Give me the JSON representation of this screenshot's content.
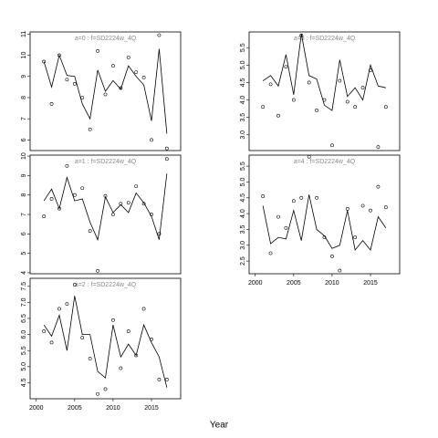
{
  "chart_data": [
    {
      "type": "line",
      "title": "a=0  :  f=SD2224w_4Q",
      "x": [
        2001,
        2002,
        2003,
        2004,
        2005,
        2006,
        2007,
        2008,
        2009,
        2010,
        2011,
        2012,
        2013,
        2014,
        2015,
        2016,
        2017
      ],
      "series": [
        {
          "marker": "line",
          "color": "#000000",
          "values": [
            9.7,
            8.5,
            10.0,
            9.05,
            9.0,
            7.7,
            7.0,
            9.3,
            8.3,
            8.8,
            8.4,
            9.5,
            9.0,
            8.6,
            6.9,
            10.3,
            6.3
          ]
        },
        {
          "marker": "circle",
          "color": "#000000",
          "values": [
            9.7,
            7.7,
            10.0,
            8.85,
            8.65,
            8.0,
            6.5,
            10.2,
            8.15,
            9.5,
            8.45,
            9.9,
            9.2,
            8.95,
            6.0,
            10.95,
            5.6
          ]
        }
      ],
      "xlim": [
        1999.2,
        2018.8
      ],
      "ylim": [
        5.5,
        11.1
      ],
      "yticks": [
        6,
        7,
        8,
        9,
        10,
        11
      ]
    },
    {
      "type": "line",
      "title": "a=1  :  f=SD2224w_4Q",
      "x": [
        2001,
        2002,
        2003,
        2004,
        2005,
        2006,
        2007,
        2008,
        2009,
        2010,
        2011,
        2012,
        2013,
        2014,
        2015,
        2016,
        2017
      ],
      "series": [
        {
          "marker": "line",
          "color": "#000000",
          "values": [
            7.7,
            8.3,
            7.3,
            8.9,
            7.7,
            7.8,
            6.6,
            5.7,
            7.9,
            7.1,
            7.5,
            7.1,
            8.1,
            7.6,
            6.9,
            5.7,
            9.1
          ]
        },
        {
          "marker": "circle",
          "color": "#000000",
          "values": [
            6.9,
            7.8,
            7.3,
            9.5,
            8.0,
            8.35,
            6.15,
            4.1,
            7.95,
            7.0,
            7.55,
            7.6,
            8.45,
            7.55,
            7.0,
            6.0,
            9.85
          ]
        }
      ],
      "xlim": [
        1999.2,
        2018.8
      ],
      "ylim": [
        3.95,
        10.05
      ],
      "yticks": [
        4,
        5,
        6,
        7,
        8,
        9,
        10
      ]
    },
    {
      "type": "line",
      "title": "a=2  :  f=SD2224w_4Q",
      "xlabel": "Year",
      "x": [
        2001,
        2002,
        2003,
        2004,
        2005,
        2006,
        2007,
        2008,
        2009,
        2010,
        2011,
        2012,
        2013,
        2014,
        2015,
        2016,
        2017
      ],
      "series": [
        {
          "marker": "line",
          "color": "#000000",
          "values": [
            6.3,
            5.95,
            6.6,
            5.5,
            7.2,
            6.0,
            6.0,
            4.85,
            4.65,
            6.3,
            5.3,
            5.7,
            5.35,
            6.3,
            5.75,
            5.3,
            4.35
          ]
        },
        {
          "marker": "circle",
          "color": "#000000",
          "values": [
            6.1,
            5.75,
            6.8,
            6.95,
            7.55,
            5.9,
            5.25,
            4.15,
            4.3,
            6.45,
            4.95,
            6.1,
            5.35,
            6.8,
            5.85,
            4.6,
            4.6
          ]
        }
      ],
      "xlim": [
        1999.2,
        2018.8
      ],
      "ylim": [
        4.0,
        7.75
      ],
      "yticks": [
        4.5,
        {
          "value": 5,
          "label": "5.0"
        },
        5.5,
        {
          "value": 6,
          "label": "6.0"
        },
        6.5,
        {
          "value": 7,
          "label": "7.0"
        },
        7.5
      ],
      "xticks": [
        2000,
        2005,
        2010,
        2015
      ]
    },
    {
      "type": "line",
      "title": "a=3  :  f=SD2224w_4Q",
      "x": [
        2001,
        2002,
        2003,
        2004,
        2005,
        2006,
        2007,
        2008,
        2009,
        2010,
        2011,
        2012,
        2013,
        2014,
        2015,
        2016,
        2017
      ],
      "series": [
        {
          "marker": "line",
          "color": "#000000",
          "values": [
            4.55,
            4.7,
            4.4,
            5.3,
            4.15,
            5.9,
            4.7,
            4.6,
            3.85,
            3.7,
            5.15,
            4.1,
            4.35,
            4.0,
            5.0,
            4.4,
            4.35
          ]
        },
        {
          "marker": "circle",
          "color": "#000000",
          "values": [
            3.8,
            4.45,
            3.55,
            4.95,
            4.0,
            5.85,
            4.5,
            3.7,
            4.0,
            2.7,
            4.55,
            3.95,
            3.8,
            4.35,
            4.85,
            2.65,
            3.8
          ]
        }
      ],
      "xlim": [
        1999.2,
        2018.8
      ],
      "ylim": [
        2.55,
        5.95
      ],
      "yticks": [
        {
          "value": 3,
          "label": "3.0"
        },
        3.5,
        {
          "value": 4,
          "label": "4.0"
        },
        4.5,
        {
          "value": 5,
          "label": "5.0"
        },
        5.5
      ]
    },
    {
      "type": "line",
      "title": "a=4  :  f=SD2224w_4Q",
      "x": [
        2001,
        2002,
        2003,
        2004,
        2005,
        2006,
        2007,
        2008,
        2009,
        2010,
        2011,
        2012,
        2013,
        2014,
        2015,
        2016,
        2017
      ],
      "series": [
        {
          "marker": "line",
          "color": "#000000",
          "values": [
            4.25,
            3.05,
            3.25,
            3.2,
            4.1,
            3.15,
            4.6,
            3.5,
            3.3,
            2.9,
            3.0,
            4.1,
            2.85,
            3.15,
            2.85,
            3.9,
            3.55
          ]
        },
        {
          "marker": "circle",
          "color": "#000000",
          "values": [
            4.55,
            2.75,
            3.9,
            3.55,
            4.4,
            4.5,
            5.8,
            4.5,
            3.25,
            2.65,
            2.2,
            4.15,
            3.25,
            4.25,
            4.1,
            4.85,
            4.2
          ]
        }
      ],
      "xlim": [
        1999.2,
        2018.8
      ],
      "ylim": [
        2.1,
        5.85
      ],
      "yticks": [
        2.5,
        {
          "value": 3,
          "label": "3.0"
        },
        3.5,
        {
          "value": 4,
          "label": "4.0"
        },
        4.5,
        {
          "value": 5,
          "label": "5.0"
        },
        5.5
      ],
      "xticks": [
        2000,
        2005,
        2010,
        2015
      ]
    }
  ]
}
